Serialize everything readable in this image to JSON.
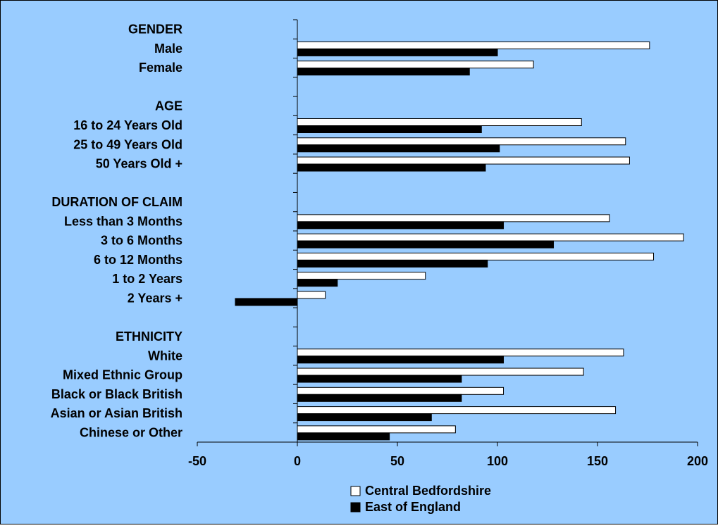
{
  "chart_data": {
    "type": "bar",
    "orientation": "horizontal",
    "title": "",
    "xlabel": "",
    "ylabel": "",
    "xlim": [
      -50,
      200
    ],
    "x_ticks": [
      "-50",
      "0",
      "50",
      "100",
      "150",
      "200"
    ],
    "grid": false,
    "legend_position": "bottom",
    "background_color": "#99CCFF",
    "categories": [
      "GENDER",
      "Male",
      "Female",
      "",
      "AGE",
      "16 to 24 Years Old",
      "25 to 49 Years Old",
      "50 Years Old +",
      "",
      "DURATION OF CLAIM",
      "Less than 3 Months",
      "3 to 6 Months",
      "6 to 12 Months",
      "1 to 2 Years",
      "2 Years +",
      "",
      "ETHNICITY",
      "White",
      "Mixed Ethnic Group",
      "Black or Black British",
      "Asian or Asian British",
      "Chinese or Other"
    ],
    "series": [
      {
        "name": "Central Bedfordshire",
        "color": "#FFFFFF",
        "values": [
          null,
          176,
          118,
          null,
          null,
          142,
          164,
          166,
          null,
          null,
          156,
          193,
          178,
          64,
          14,
          null,
          null,
          163,
          143,
          103,
          159,
          79
        ]
      },
      {
        "name": "East of England",
        "color": "#000000",
        "values": [
          null,
          100,
          86,
          null,
          null,
          92,
          101,
          94,
          null,
          null,
          103,
          128,
          95,
          20,
          -31,
          null,
          null,
          103,
          82,
          82,
          67,
          46
        ]
      }
    ]
  }
}
